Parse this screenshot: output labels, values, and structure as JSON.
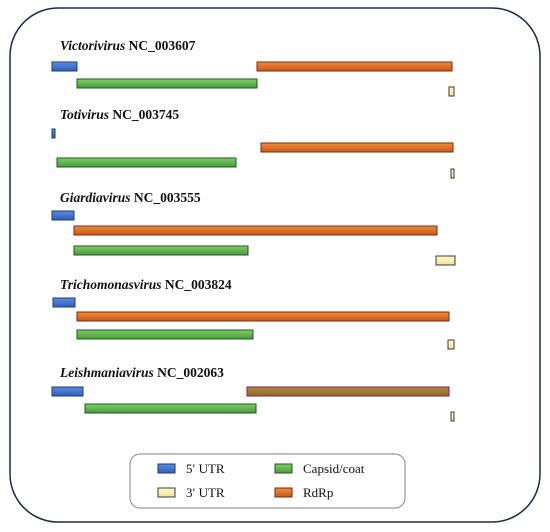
{
  "genomes": [
    {
      "genus": "Victorivirus",
      "accession": "NC_003607"
    },
    {
      "genus": "Totivirus",
      "accession": "NC_003745"
    },
    {
      "genus": "Giardiavirus",
      "accession": "NC_003555"
    },
    {
      "genus": "Trichomonasvirus",
      "accession": "NC_003824"
    },
    {
      "genus": "Leishmaniavirus",
      "accession": "NC_002063"
    }
  ],
  "legend": [
    "5′ UTR",
    "3′ UTR",
    "Capsid/coat",
    "RdRp"
  ]
}
